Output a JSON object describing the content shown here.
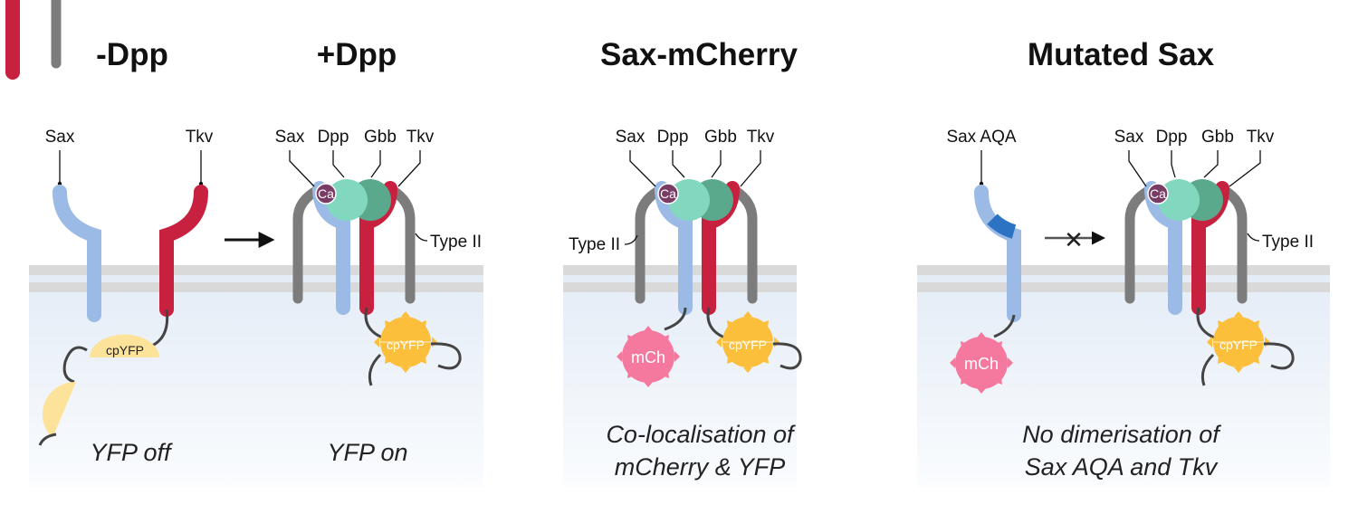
{
  "panels": [
    {
      "title": "-Dpp",
      "caption": [
        "YFP off"
      ]
    },
    {
      "title": "+Dpp",
      "caption": [
        "YFP on"
      ]
    },
    {
      "title": "Sax-mCherry",
      "caption": [
        "Co-localisation of",
        "mCherry & YFP"
      ]
    },
    {
      "title": "Mutated Sax",
      "caption": [
        "No dimerisation of",
        "Sax AQA and Tkv"
      ]
    }
  ],
  "labels": {
    "sax": "Sax",
    "tkv": "Tkv",
    "dpp": "Dpp",
    "gbb": "Gbb",
    "type2": "Type II",
    "ca": "Ca",
    "cpyfp": "cpYFP",
    "mch": "mCh",
    "sax_aqa": "Sax AQA"
  },
  "colors": {
    "sax": "#9bbbe6",
    "sax_mutation": "#2d73c4",
    "tkv": "#c8203f",
    "type2": "#7c7c7c",
    "dpp": "#82d8bf",
    "gbb": "#5aa98c",
    "ca": "#7a3b65",
    "yfp_on": "#fbbf3b",
    "yfp_off": "#fde29a",
    "mcherry": "#f5789e",
    "membrane": "#d9d9d9",
    "cytoplasm": "#eef3fa"
  },
  "arrows": {
    "activation": "→",
    "blocked": "✕"
  }
}
